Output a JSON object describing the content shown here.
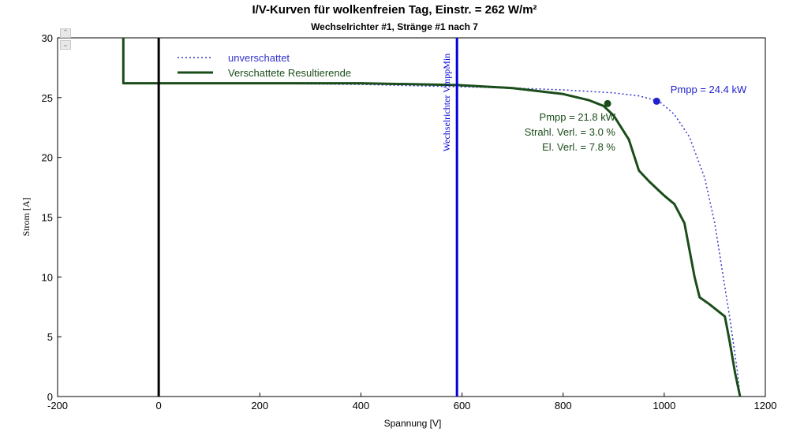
{
  "chart_data": {
    "type": "line",
    "title": "I/V-Kurven für wolkenfreien Tag, Einstr. = 262 W/m²",
    "subtitle": "Wechselrichter  #1, Stränge #1 nach 7",
    "xlabel": "Spannung [V]",
    "ylabel": "Strom [A]",
    "xlim": [
      -200,
      1200
    ],
    "ylim": [
      0,
      30
    ],
    "xticks": [
      -200,
      0,
      200,
      400,
      600,
      800,
      1000,
      1200
    ],
    "yticks": [
      0,
      5,
      10,
      15,
      20,
      25,
      30
    ],
    "grid": false,
    "legend_position": "top-left",
    "series": [
      {
        "name": "unverschattet",
        "style": "dotted",
        "color": "#3333cc",
        "x": [
          160,
          400,
          600,
          700,
          800,
          900,
          950,
          990,
          1020,
          1050,
          1080,
          1100,
          1115,
          1130,
          1145,
          1150
        ],
        "y": [
          26.2,
          26.1,
          25.9,
          25.8,
          25.65,
          25.4,
          25.15,
          24.7,
          23.6,
          21.7,
          18.3,
          14.5,
          10.5,
          6.5,
          2.0,
          0
        ]
      },
      {
        "name": "Verschattete Resultierende",
        "style": "solid",
        "color": "#1a4d1a",
        "x": [
          -70,
          -70,
          -65,
          0,
          200,
          400,
          590,
          700,
          800,
          850,
          880,
          900,
          930,
          950,
          970,
          990,
          1000,
          1020,
          1040,
          1060,
          1070,
          1090,
          1120,
          1130,
          1140,
          1150
        ],
        "y": [
          30,
          26.2,
          26.2,
          26.2,
          26.2,
          26.2,
          26.05,
          25.8,
          25.3,
          24.8,
          24.3,
          23.5,
          21.5,
          18.9,
          18.0,
          17.2,
          16.8,
          16.1,
          14.5,
          10.0,
          8.3,
          7.7,
          6.7,
          4.5,
          2.0,
          0
        ]
      }
    ],
    "markers": [
      {
        "series": "unverschattet",
        "x": 985,
        "y": 24.7,
        "color": "#2222cc",
        "label": "Pmpp = 24.4 kW"
      },
      {
        "series": "Verschattete Resultierende",
        "x": 888,
        "y": 24.5,
        "color": "#1a4d1a",
        "label": "Pmpp = 21.8 kW"
      }
    ],
    "annotations": [
      {
        "text": "Strahl. Verl. = 3.0 %",
        "color": "#1a4d1a"
      },
      {
        "text": "El. Verl. = 7.8 %",
        "color": "#1a4d1a"
      }
    ],
    "vertical_lines": [
      {
        "x": 0,
        "color": "#000000"
      },
      {
        "x": 590,
        "color": "#0000dd",
        "label": "Wechselrichter VmppMin"
      }
    ]
  },
  "ui": {
    "scroll_up_glyph": "⌃",
    "scroll_down_glyph": "⌄"
  }
}
